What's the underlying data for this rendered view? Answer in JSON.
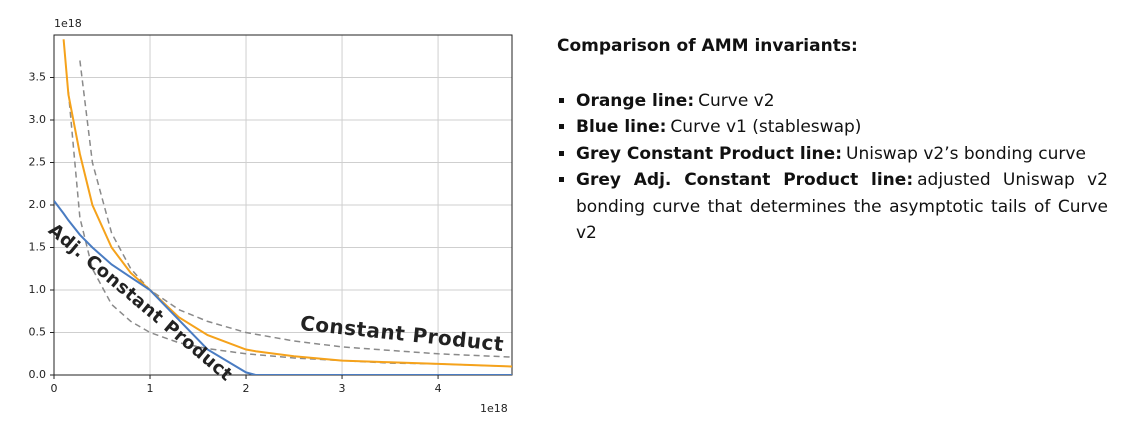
{
  "chart_data": {
    "type": "line",
    "x_offset_label": "1e18",
    "y_offset_label": "1e18",
    "x": [
      0,
      0.1,
      0.15,
      0.27,
      0.4,
      0.6,
      0.8,
      1,
      1.3,
      1.6,
      2,
      2.1,
      2.5,
      3,
      3.5,
      4,
      4.77
    ],
    "series": [
      {
        "name": "Constant Product",
        "color": "#8a8a8a",
        "dashed": true,
        "values": [
          null,
          null,
          null,
          3.7,
          2.5,
          1.67,
          1.25,
          1,
          0.77,
          0.63,
          0.5,
          0.48,
          0.4,
          0.33,
          0.29,
          0.25,
          0.21
        ]
      },
      {
        "name": "Adj. Constant Product",
        "color": "#8a8a8a",
        "dashed": true,
        "values": [
          null,
          null,
          3.33,
          1.85,
          1.25,
          0.83,
          0.63,
          0.5,
          0.38,
          0.31,
          0.25,
          0.24,
          0.2,
          0.17,
          0.14,
          0.13,
          0.1
        ]
      },
      {
        "name": "Curve v2",
        "color": "#f5a21b",
        "dashed": false,
        "values": [
          null,
          3.95,
          3.3,
          2.6,
          2.0,
          1.5,
          1.2,
          1,
          0.68,
          0.47,
          0.3,
          0.28,
          0.22,
          0.17,
          0.15,
          0.13,
          0.1
        ]
      },
      {
        "name": "Curve v1",
        "color": "#4a7cc2",
        "dashed": false,
        "values": [
          2.05,
          1.9,
          1.82,
          1.65,
          1.5,
          1.3,
          1.15,
          1,
          0.65,
          0.3,
          0.03,
          0,
          0,
          0,
          0,
          0,
          0
        ]
      }
    ],
    "xlim": [
      0,
      4.77
    ],
    "ylim": [
      0,
      4
    ],
    "xticks": [
      0,
      1,
      2,
      3,
      4
    ],
    "yticks": [
      {
        "value": 0,
        "label": "0.0"
      },
      {
        "value": 0.5,
        "label": "0.5"
      },
      {
        "value": 1,
        "label": "1.0"
      },
      {
        "value": 1.5,
        "label": "1.5"
      },
      {
        "value": 2,
        "label": "2.0"
      },
      {
        "value": 2.5,
        "label": "2.5"
      },
      {
        "value": 3,
        "label": "3.0"
      },
      {
        "value": 3.5,
        "label": "3.5"
      }
    ],
    "grid": true
  },
  "notes": {
    "title": "Comparison of AMM invariants:",
    "items": [
      {
        "label": "Orange line:",
        "text": "Curve v2"
      },
      {
        "label": "Blue line:",
        "text": "Curve v1 (stableswap)"
      },
      {
        "label": "Grey Constant Product line:",
        "text": "Uniswap v2’s bonding curve"
      },
      {
        "label": "Grey Adj. Constant Product line:",
        "text": "adjusted Uniswap v2 bonding curve that determines the asymptotic tails of Curve v2"
      }
    ]
  }
}
